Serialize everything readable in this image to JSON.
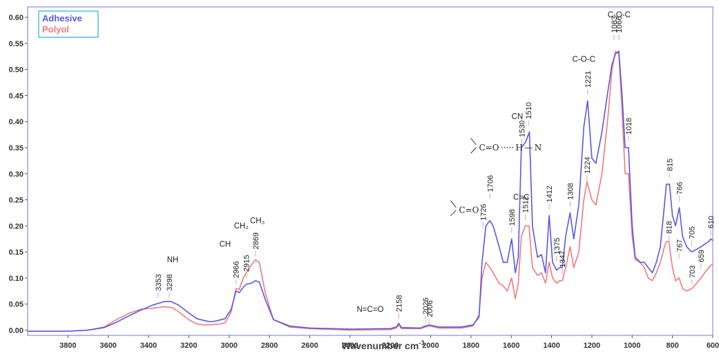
{
  "chart_data": {
    "type": "line",
    "title": "",
    "xlabel": "Wavenumber cm",
    "xlabel_sup": "-1",
    "ylabel": "",
    "xlim": [
      4000,
      600
    ],
    "ylim": [
      -0.01,
      0.62
    ],
    "x_reversed": true,
    "grid": false,
    "legend_position": "top-left",
    "x_ticks": [
      3800,
      3600,
      3400,
      3200,
      3000,
      2800,
      2600,
      2400,
      2200,
      2000,
      1800,
      1600,
      1400,
      1200,
      1000,
      800,
      600
    ],
    "y_ticks": [
      0.0,
      0.05,
      0.1,
      0.15,
      0.2,
      0.25,
      0.3,
      0.35,
      0.4,
      0.45,
      0.5,
      0.55,
      0.6
    ],
    "series": [
      {
        "name": "Adhesive",
        "color": "#5757e8",
        "points": [
          [
            4000,
            -0.002
          ],
          [
            3800,
            -0.002
          ],
          [
            3700,
            0.0
          ],
          [
            3620,
            0.005
          ],
          [
            3560,
            0.015
          ],
          [
            3500,
            0.027
          ],
          [
            3440,
            0.038
          ],
          [
            3380,
            0.048
          ],
          [
            3320,
            0.055
          ],
          [
            3290,
            0.055
          ],
          [
            3250,
            0.048
          ],
          [
            3200,
            0.033
          ],
          [
            3160,
            0.022
          ],
          [
            3120,
            0.018
          ],
          [
            3090,
            0.016
          ],
          [
            3060,
            0.018
          ],
          [
            3020,
            0.022
          ],
          [
            2990,
            0.04
          ],
          [
            2966,
            0.075
          ],
          [
            2950,
            0.072
          ],
          [
            2930,
            0.082
          ],
          [
            2915,
            0.088
          ],
          [
            2890,
            0.09
          ],
          [
            2869,
            0.095
          ],
          [
            2850,
            0.092
          ],
          [
            2820,
            0.058
          ],
          [
            2780,
            0.02
          ],
          [
            2700,
            0.008
          ],
          [
            2600,
            0.004
          ],
          [
            2400,
            0.002
          ],
          [
            2200,
            0.003
          ],
          [
            2170,
            0.006
          ],
          [
            2158,
            0.013
          ],
          [
            2145,
            0.005
          ],
          [
            2050,
            0.004
          ],
          [
            2026,
            0.008
          ],
          [
            2006,
            0.01
          ],
          [
            1960,
            0.006
          ],
          [
            1850,
            0.006
          ],
          [
            1790,
            0.01
          ],
          [
            1760,
            0.025
          ],
          [
            1745,
            0.13
          ],
          [
            1726,
            0.2
          ],
          [
            1706,
            0.21
          ],
          [
            1690,
            0.2
          ],
          [
            1660,
            0.16
          ],
          [
            1640,
            0.13
          ],
          [
            1620,
            0.13
          ],
          [
            1598,
            0.175
          ],
          [
            1580,
            0.11
          ],
          [
            1565,
            0.14
          ],
          [
            1550,
            0.35
          ],
          [
            1530,
            0.36
          ],
          [
            1510,
            0.38
          ],
          [
            1495,
            0.2
          ],
          [
            1470,
            0.14
          ],
          [
            1450,
            0.145
          ],
          [
            1430,
            0.11
          ],
          [
            1412,
            0.22
          ],
          [
            1395,
            0.13
          ],
          [
            1375,
            0.115
          ],
          [
            1360,
            0.12
          ],
          [
            1347,
            0.12
          ],
          [
            1330,
            0.18
          ],
          [
            1308,
            0.225
          ],
          [
            1290,
            0.175
          ],
          [
            1265,
            0.24
          ],
          [
            1240,
            0.39
          ],
          [
            1221,
            0.44
          ],
          [
            1200,
            0.33
          ],
          [
            1180,
            0.32
          ],
          [
            1150,
            0.38
          ],
          [
            1120,
            0.46
          ],
          [
            1100,
            0.51
          ],
          [
            1083,
            0.53
          ],
          [
            1066,
            0.535
          ],
          [
            1050,
            0.45
          ],
          [
            1035,
            0.35
          ],
          [
            1018,
            0.35
          ],
          [
            1000,
            0.2
          ],
          [
            985,
            0.14
          ],
          [
            960,
            0.13
          ],
          [
            940,
            0.13
          ],
          [
            920,
            0.12
          ],
          [
            900,
            0.11
          ],
          [
            880,
            0.13
          ],
          [
            860,
            0.16
          ],
          [
            840,
            0.24
          ],
          [
            830,
            0.28
          ],
          [
            815,
            0.28
          ],
          [
            800,
            0.22
          ],
          [
            785,
            0.2
          ],
          [
            766,
            0.235
          ],
          [
            750,
            0.18
          ],
          [
            730,
            0.16
          ],
          [
            705,
            0.15
          ],
          [
            680,
            0.155
          ],
          [
            659,
            0.16
          ],
          [
            640,
            0.165
          ],
          [
            620,
            0.17
          ],
          [
            610,
            0.175
          ],
          [
            600,
            0.172
          ]
        ]
      },
      {
        "name": "Polyol",
        "color": "#f07a7a",
        "points": [
          [
            4000,
            -0.002
          ],
          [
            3800,
            -0.002
          ],
          [
            3700,
            0.0
          ],
          [
            3620,
            0.006
          ],
          [
            3560,
            0.02
          ],
          [
            3500,
            0.032
          ],
          [
            3440,
            0.04
          ],
          [
            3380,
            0.042
          ],
          [
            3320,
            0.045
          ],
          [
            3280,
            0.043
          ],
          [
            3250,
            0.035
          ],
          [
            3200,
            0.02
          ],
          [
            3160,
            0.012
          ],
          [
            3120,
            0.01
          ],
          [
            3060,
            0.011
          ],
          [
            3020,
            0.014
          ],
          [
            2990,
            0.035
          ],
          [
            2966,
            0.08
          ],
          [
            2950,
            0.078
          ],
          [
            2930,
            0.1
          ],
          [
            2915,
            0.11
          ],
          [
            2890,
            0.125
          ],
          [
            2869,
            0.135
          ],
          [
            2850,
            0.13
          ],
          [
            2820,
            0.07
          ],
          [
            2780,
            0.02
          ],
          [
            2700,
            0.006
          ],
          [
            2600,
            0.003
          ],
          [
            2400,
            0.0
          ],
          [
            2200,
            0.001
          ],
          [
            2170,
            0.004
          ],
          [
            2158,
            0.01
          ],
          [
            2145,
            0.003
          ],
          [
            2050,
            0.003
          ],
          [
            2026,
            0.006
          ],
          [
            2006,
            0.008
          ],
          [
            1960,
            0.004
          ],
          [
            1850,
            0.004
          ],
          [
            1790,
            0.008
          ],
          [
            1760,
            0.03
          ],
          [
            1745,
            0.1
          ],
          [
            1726,
            0.13
          ],
          [
            1706,
            0.12
          ],
          [
            1690,
            0.11
          ],
          [
            1660,
            0.09
          ],
          [
            1640,
            0.085
          ],
          [
            1620,
            0.075
          ],
          [
            1598,
            0.1
          ],
          [
            1580,
            0.06
          ],
          [
            1565,
            0.09
          ],
          [
            1550,
            0.18
          ],
          [
            1530,
            0.2
          ],
          [
            1512,
            0.2
          ],
          [
            1495,
            0.12
          ],
          [
            1470,
            0.105
          ],
          [
            1450,
            0.11
          ],
          [
            1430,
            0.09
          ],
          [
            1412,
            0.13
          ],
          [
            1395,
            0.1
          ],
          [
            1375,
            0.09
          ],
          [
            1360,
            0.095
          ],
          [
            1347,
            0.095
          ],
          [
            1330,
            0.12
          ],
          [
            1308,
            0.16
          ],
          [
            1290,
            0.12
          ],
          [
            1265,
            0.15
          ],
          [
            1240,
            0.25
          ],
          [
            1224,
            0.285
          ],
          [
            1200,
            0.25
          ],
          [
            1180,
            0.24
          ],
          [
            1150,
            0.3
          ],
          [
            1120,
            0.41
          ],
          [
            1100,
            0.5
          ],
          [
            1083,
            0.535
          ],
          [
            1066,
            0.53
          ],
          [
            1050,
            0.42
          ],
          [
            1035,
            0.3
          ],
          [
            1018,
            0.3
          ],
          [
            1000,
            0.18
          ],
          [
            985,
            0.135
          ],
          [
            960,
            0.13
          ],
          [
            940,
            0.12
          ],
          [
            920,
            0.1
          ],
          [
            900,
            0.095
          ],
          [
            880,
            0.11
          ],
          [
            860,
            0.13
          ],
          [
            840,
            0.16
          ],
          [
            830,
            0.17
          ],
          [
            818,
            0.17
          ],
          [
            800,
            0.12
          ],
          [
            785,
            0.095
          ],
          [
            767,
            0.1
          ],
          [
            750,
            0.08
          ],
          [
            730,
            0.075
          ],
          [
            703,
            0.08
          ],
          [
            680,
            0.09
          ],
          [
            659,
            0.1
          ],
          [
            640,
            0.11
          ],
          [
            620,
            0.12
          ],
          [
            610,
            0.125
          ],
          [
            600,
            0.125
          ]
        ]
      }
    ],
    "peak_labels": [
      {
        "text": "3353",
        "x": 3353,
        "y": 0.075
      },
      {
        "text": "3298",
        "x": 3298,
        "y": 0.075
      },
      {
        "text": "2966",
        "x": 2966,
        "y": 0.1
      },
      {
        "text": "2915",
        "x": 2915,
        "y": 0.112
      },
      {
        "text": "2869",
        "x": 2869,
        "y": 0.155
      },
      {
        "text": "2158",
        "x": 2158,
        "y": 0.035
      },
      {
        "text": "2026",
        "x": 2026,
        "y": 0.03
      },
      {
        "text": "2006",
        "x": 2006,
        "y": 0.025
      },
      {
        "text": "1726",
        "x": 1740,
        "y": 0.21
      },
      {
        "text": "1706",
        "x": 1706,
        "y": 0.265
      },
      {
        "text": "1598",
        "x": 1598,
        "y": 0.2
      },
      {
        "text": "1530",
        "x": 1548,
        "y": 0.37
      },
      {
        "text": "1512",
        "x": 1530,
        "y": 0.225
      },
      {
        "text": "1510",
        "x": 1515,
        "y": 0.405
      },
      {
        "text": "1412",
        "x": 1412,
        "y": 0.245
      },
      {
        "text": "1375",
        "x": 1375,
        "y": 0.145
      },
      {
        "text": "1347",
        "x": 1347,
        "y": 0.12
      },
      {
        "text": "1308",
        "x": 1308,
        "y": 0.25
      },
      {
        "text": "1224",
        "x": 1224,
        "y": 0.3
      },
      {
        "text": "1221",
        "x": 1221,
        "y": 0.465
      },
      {
        "text": "1083",
        "x": 1090,
        "y": 0.57
      },
      {
        "text": "1066",
        "x": 1066,
        "y": 0.57
      },
      {
        "text": "1018",
        "x": 1018,
        "y": 0.375
      },
      {
        "text": "815",
        "x": 815,
        "y": 0.305
      },
      {
        "text": "818",
        "x": 818,
        "y": 0.185
      },
      {
        "text": "766",
        "x": 766,
        "y": 0.26
      },
      {
        "text": "767",
        "x": 767,
        "y": 0.15
      },
      {
        "text": "705",
        "x": 705,
        "y": 0.175
      },
      {
        "text": "703",
        "x": 703,
        "y": 0.1
      },
      {
        "text": "659",
        "x": 659,
        "y": 0.13
      },
      {
        "text": "610",
        "x": 610,
        "y": 0.195
      }
    ],
    "group_labels": [
      {
        "text": "NH",
        "x": 3280,
        "y": 0.13
      },
      {
        "text": "CH",
        "x": 3020,
        "y": 0.16
      },
      {
        "text": "CH₂",
        "x": 2940,
        "y": 0.195
      },
      {
        "text": "CH₃",
        "x": 2860,
        "y": 0.205
      },
      {
        "text": "N=C=O",
        "x": 2300,
        "y": 0.035
      },
      {
        "text": "C=C",
        "x": 1550,
        "y": 0.25
      },
      {
        "text": "CN",
        "x": 1570,
        "y": 0.405
      },
      {
        "text": "C-O-C",
        "x": 1240,
        "y": 0.515
      },
      {
        "text": "C-O-C",
        "x": 1065,
        "y": 0.6
      }
    ],
    "chem_structures": [
      {
        "text": "C=O",
        "x": 1860,
        "y": 0.23
      },
      {
        "text": "C=O ····· H — N",
        "x": 1760,
        "y": 0.35
      }
    ]
  }
}
